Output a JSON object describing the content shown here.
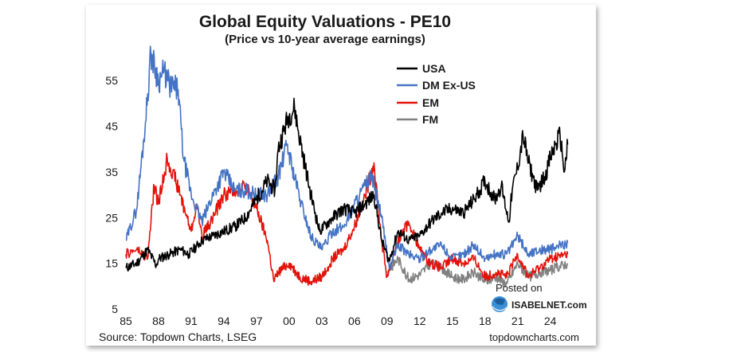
{
  "chart_data": {
    "type": "line",
    "title": "Global Equity Valuations - PE10",
    "subtitle": "(Price vs 10-year average earnings)",
    "xlabel": "",
    "ylabel": "",
    "xlim": [
      1985,
      2026
    ],
    "ylim": [
      5,
      62
    ],
    "x_ticks": [
      {
        "value": 1985,
        "label": "85"
      },
      {
        "value": 1988,
        "label": "88"
      },
      {
        "value": 1991,
        "label": "91"
      },
      {
        "value": 1994,
        "label": "94"
      },
      {
        "value": 1997,
        "label": "97"
      },
      {
        "value": 2000,
        "label": "00"
      },
      {
        "value": 2003,
        "label": "03"
      },
      {
        "value": 2006,
        "label": "06"
      },
      {
        "value": 2009,
        "label": "09"
      },
      {
        "value": 2012,
        "label": "12"
      },
      {
        "value": 2015,
        "label": "15"
      },
      {
        "value": 2018,
        "label": "18"
      },
      {
        "value": 2021,
        "label": "21"
      },
      {
        "value": 2024,
        "label": "24"
      }
    ],
    "y_ticks": [
      {
        "value": 5,
        "label": "5"
      },
      {
        "value": 15,
        "label": "15"
      },
      {
        "value": 25,
        "label": "25"
      },
      {
        "value": 35,
        "label": "35"
      },
      {
        "value": 45,
        "label": "45"
      },
      {
        "value": 55,
        "label": "55"
      }
    ],
    "grid": false,
    "legend_position": "top-right",
    "series": [
      {
        "name": "USA",
        "color": "#000000",
        "x": [
          1985,
          1986,
          1987,
          1987.8,
          1988,
          1989,
          1990,
          1990.8,
          1992,
          1993,
          1994,
          1995,
          1996,
          1997,
          1998,
          1998.7,
          1999,
          1999.9,
          2000.5,
          2001,
          2002,
          2002.8,
          2004,
          2005,
          2006,
          2007,
          2007.8,
          2008.5,
          2009.2,
          2010,
          2011,
          2012,
          2013,
          2014,
          2015,
          2016,
          2017,
          2018,
          2018.9,
          2019.5,
          2020.2,
          2020.5,
          2021,
          2021.5,
          2022,
          2022.8,
          2023,
          2023.5,
          2024,
          2024.5,
          2024.9,
          2025.1,
          2025.3,
          2025.6
        ],
        "y": [
          14,
          15,
          18,
          14.5,
          16,
          17,
          18,
          17,
          20,
          21,
          22,
          23,
          25,
          29,
          33,
          31,
          40,
          47,
          49,
          42,
          30,
          22,
          25,
          27,
          26,
          28,
          30,
          20,
          15.5,
          22,
          20,
          21,
          24,
          26,
          27,
          26,
          29,
          33,
          29,
          32,
          24,
          31,
          36,
          43,
          37,
          31,
          32,
          34,
          38,
          41,
          43,
          39,
          35,
          41
        ]
      },
      {
        "name": "DM Ex-US",
        "color": "#4472c4",
        "x": [
          1985,
          1986,
          1986.8,
          1987.3,
          1988,
          1988.5,
          1989,
          1989.8,
          1990.3,
          1991,
          1992,
          1993,
          1994,
          1995,
          1996,
          1997,
          1998,
          1999,
          1999.8,
          2000.3,
          2001,
          2002,
          2003,
          2004,
          2005,
          2006,
          2007,
          2007.6,
          2008.5,
          2009.2,
          2010,
          2011,
          2012,
          2013,
          2014,
          2015,
          2016,
          2017,
          2018,
          2019,
          2020,
          2021,
          2022,
          2023,
          2024,
          2025.6
        ],
        "y": [
          20,
          27,
          46,
          61,
          55,
          57,
          54,
          53,
          38,
          30,
          24,
          30,
          35,
          31,
          31,
          30,
          30,
          34,
          41,
          36,
          29,
          21,
          18,
          22,
          23,
          28,
          32,
          34,
          25,
          14,
          19,
          17,
          16,
          18,
          19,
          16,
          17,
          19,
          16,
          17,
          17,
          21,
          17,
          18,
          18,
          19.5
        ]
      },
      {
        "name": "EM",
        "color": "#e3120b",
        "x": [
          1985,
          1986,
          1987,
          1987.6,
          1988,
          1988.8,
          1989.3,
          1990,
          1991,
          1991.5,
          1992,
          1993,
          1994,
          1995,
          1996,
          1997,
          1998,
          1998.6,
          1999,
          2000,
          2001,
          2002,
          2003,
          2004,
          2005,
          2006,
          2007,
          2007.8,
          2008.5,
          2009,
          2010,
          2011,
          2012,
          2013,
          2014,
          2015,
          2016,
          2017,
          2018,
          2019,
          2020,
          2021,
          2022,
          2023,
          2024,
          2025.6
        ],
        "y": [
          17,
          18,
          16,
          32,
          28,
          38,
          35,
          30,
          22,
          28,
          21,
          25,
          30,
          31,
          32,
          27,
          20,
          11,
          13,
          15,
          12,
          11,
          12,
          16,
          18,
          23,
          30,
          37,
          20,
          12,
          20,
          24,
          18,
          15,
          14,
          16,
          15,
          16,
          12,
          13,
          12,
          17,
          12,
          14,
          16,
          17
        ]
      },
      {
        "name": "FM",
        "color": "#808080",
        "x": [
          2009,
          2010,
          2011,
          2012,
          2013,
          2014,
          2015,
          2016,
          2017,
          2018,
          2019,
          2020,
          2021,
          2022,
          2023,
          2024,
          2025.6
        ],
        "y": [
          13,
          16,
          11.5,
          12.5,
          15,
          14,
          12,
          11.5,
          13,
          11,
          12,
          10.5,
          15,
          12,
          13,
          13.5,
          15
        ]
      }
    ],
    "source": "Source: Topdown Charts, LSEG",
    "credit_top": "Posted on",
    "credit_site": "ISABELNET.com",
    "credit_bottom": "topdowncharts.com"
  }
}
